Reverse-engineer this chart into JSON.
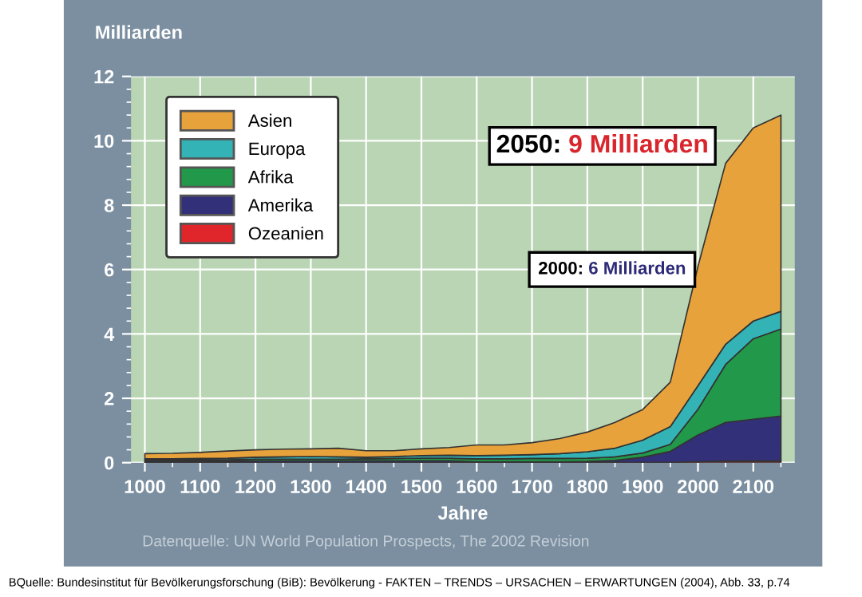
{
  "chart_data": {
    "type": "area",
    "stacked": true,
    "ylabel": "Milliarden",
    "xlabel": "Jahre",
    "x": [
      1000,
      1050,
      1100,
      1150,
      1200,
      1250,
      1300,
      1350,
      1400,
      1450,
      1500,
      1550,
      1600,
      1650,
      1700,
      1750,
      1800,
      1850,
      1900,
      1950,
      2000,
      2050,
      2100,
      2150
    ],
    "series": [
      {
        "name": "Ozeanien",
        "color": "#e0262b",
        "values": [
          0.01,
          0.01,
          0.01,
          0.01,
          0.01,
          0.01,
          0.01,
          0.01,
          0.01,
          0.01,
          0.01,
          0.01,
          0.01,
          0.01,
          0.01,
          0.01,
          0.01,
          0.01,
          0.01,
          0.01,
          0.03,
          0.05,
          0.05,
          0.05
        ]
      },
      {
        "name": "Amerika",
        "color": "#33307a",
        "values": [
          0.04,
          0.04,
          0.04,
          0.04,
          0.05,
          0.05,
          0.05,
          0.05,
          0.05,
          0.05,
          0.05,
          0.05,
          0.02,
          0.02,
          0.02,
          0.02,
          0.03,
          0.06,
          0.16,
          0.34,
          0.83,
          1.2,
          1.3,
          1.4
        ]
      },
      {
        "name": "Afrika",
        "color": "#22994a",
        "values": [
          0.04,
          0.04,
          0.04,
          0.04,
          0.05,
          0.05,
          0.05,
          0.05,
          0.06,
          0.07,
          0.08,
          0.08,
          0.09,
          0.09,
          0.1,
          0.1,
          0.1,
          0.11,
          0.13,
          0.22,
          0.8,
          1.8,
          2.5,
          2.7
        ]
      },
      {
        "name": "Europa",
        "color": "#33b3b5",
        "values": [
          0.03,
          0.03,
          0.04,
          0.05,
          0.06,
          0.07,
          0.08,
          0.07,
          0.05,
          0.06,
          0.08,
          0.09,
          0.1,
          0.11,
          0.12,
          0.15,
          0.2,
          0.27,
          0.4,
          0.55,
          0.73,
          0.63,
          0.55,
          0.55
        ]
      },
      {
        "name": "Asien",
        "color": "#e8a23c",
        "values": [
          0.16,
          0.17,
          0.19,
          0.22,
          0.23,
          0.24,
          0.24,
          0.27,
          0.2,
          0.18,
          0.21,
          0.24,
          0.33,
          0.32,
          0.37,
          0.47,
          0.61,
          0.8,
          0.95,
          1.38,
          3.71,
          5.62,
          6.0,
          6.1
        ]
      }
    ],
    "xlim": [
      975,
      2175
    ],
    "ylim": [
      0,
      12
    ],
    "xticks": [
      1000,
      1100,
      1200,
      1300,
      1400,
      1500,
      1600,
      1700,
      1800,
      1900,
      2000,
      2100
    ],
    "yticks": [
      0,
      2,
      4,
      6,
      8,
      10,
      12
    ],
    "grid": true,
    "legend": "top left",
    "annotations": [
      "2050: 9 Milliarden",
      "2000: 6 Milliarden",
      "Datenquelle: UN World Population Prospects, The 2002 Revision",
      "BQuelle: Bundesinstitut für Bevölkerungsforschung (BiB): Bevölkerung - FAKTEN – TRENDS – URSACHEN – ERWARTUNGEN (2004), Abb. 33, p.74"
    ]
  }
}
